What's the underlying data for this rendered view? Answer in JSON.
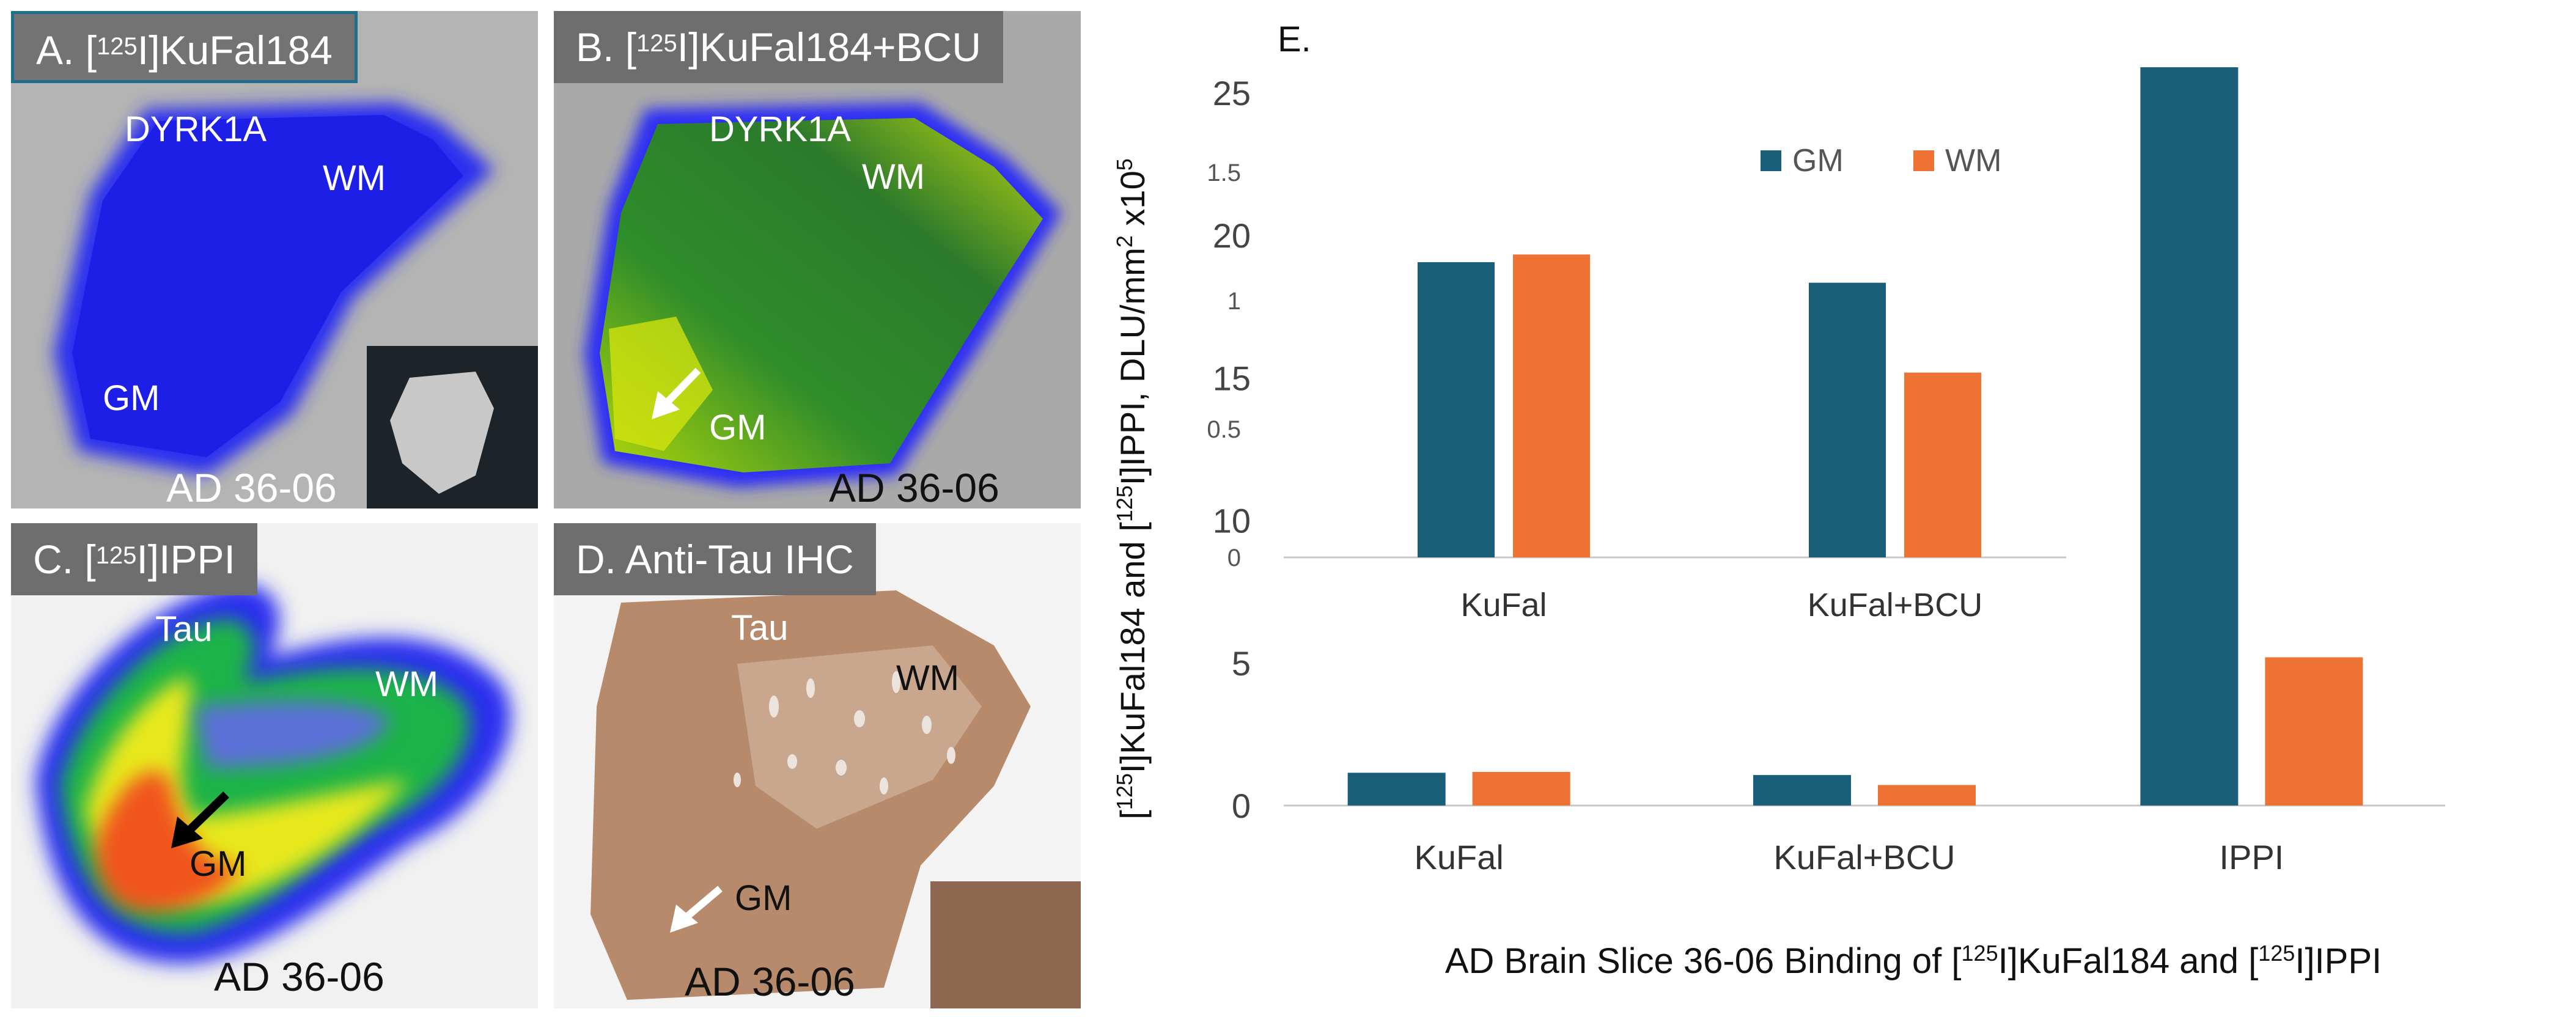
{
  "panels": {
    "a": {
      "label_prefix": "A. [",
      "label_iso": "125",
      "label_rest": "I]KuFal184",
      "dyrk": "DYRK1A",
      "wm": "WM",
      "gm": "GM",
      "sample": "AD 36-06"
    },
    "b": {
      "label_prefix": "B. [",
      "label_iso": "125",
      "label_rest": "I]KuFal184+BCU",
      "dyrk": "DYRK1A",
      "wm": "WM",
      "gm": "GM",
      "sample": "AD 36-06"
    },
    "c": {
      "label_prefix": "C. [",
      "label_iso": "125",
      "label_rest": "I]IPPI",
      "tau": "Tau",
      "wm": "WM",
      "gm": "GM",
      "sample": "AD 36-06"
    },
    "d": {
      "label": "D. Anti-Tau IHC",
      "tau": "Tau",
      "wm": "WM",
      "gm": "GM",
      "sample": "AD 36-06"
    }
  },
  "chart_data": [
    {
      "type": "bar",
      "panel_label": "E.",
      "categories": [
        "KuFal",
        "KuFal+BCU",
        "IPPI"
      ],
      "series": [
        {
          "name": "GM",
          "values": [
            1.15,
            1.07,
            25.9
          ]
        },
        {
          "name": "WM",
          "values": [
            1.18,
            0.72,
            5.2
          ]
        }
      ],
      "colors": {
        "GM": "#1a5f7a",
        "WM": "#ed7234"
      },
      "ylim": [
        0,
        25
      ],
      "yticks": [
        "0",
        "5",
        "10",
        "15",
        "20",
        "25"
      ],
      "ylabel_prefix": "[",
      "ylabel_iso1": "125",
      "ylabel_mid": "I]KuFal184 and [",
      "ylabel_iso2": "125",
      "ylabel_mid2": "I]IPPI, DLU/mm",
      "ylabel_exp1": "2",
      "ylabel_mid3": " x10",
      "ylabel_exp2": "5",
      "xlabel_prefix": "AD Brain Slice 36-06  Binding of [",
      "xlabel_iso1": "125",
      "xlabel_mid": "I]KuFal184 and [",
      "xlabel_iso2": "125",
      "xlabel_end": "I]IPPI"
    },
    {
      "type": "bar",
      "name": "inset",
      "categories": [
        "KuFal",
        "KuFal+BCU"
      ],
      "series": [
        {
          "name": "GM",
          "values": [
            1.15,
            1.07
          ]
        },
        {
          "name": "WM",
          "values": [
            1.18,
            0.72
          ]
        }
      ],
      "ylim": [
        0,
        1.5
      ],
      "yticks": [
        "0",
        "0.5",
        "1",
        "1.5"
      ],
      "legend": [
        "GM",
        "WM"
      ]
    }
  ]
}
